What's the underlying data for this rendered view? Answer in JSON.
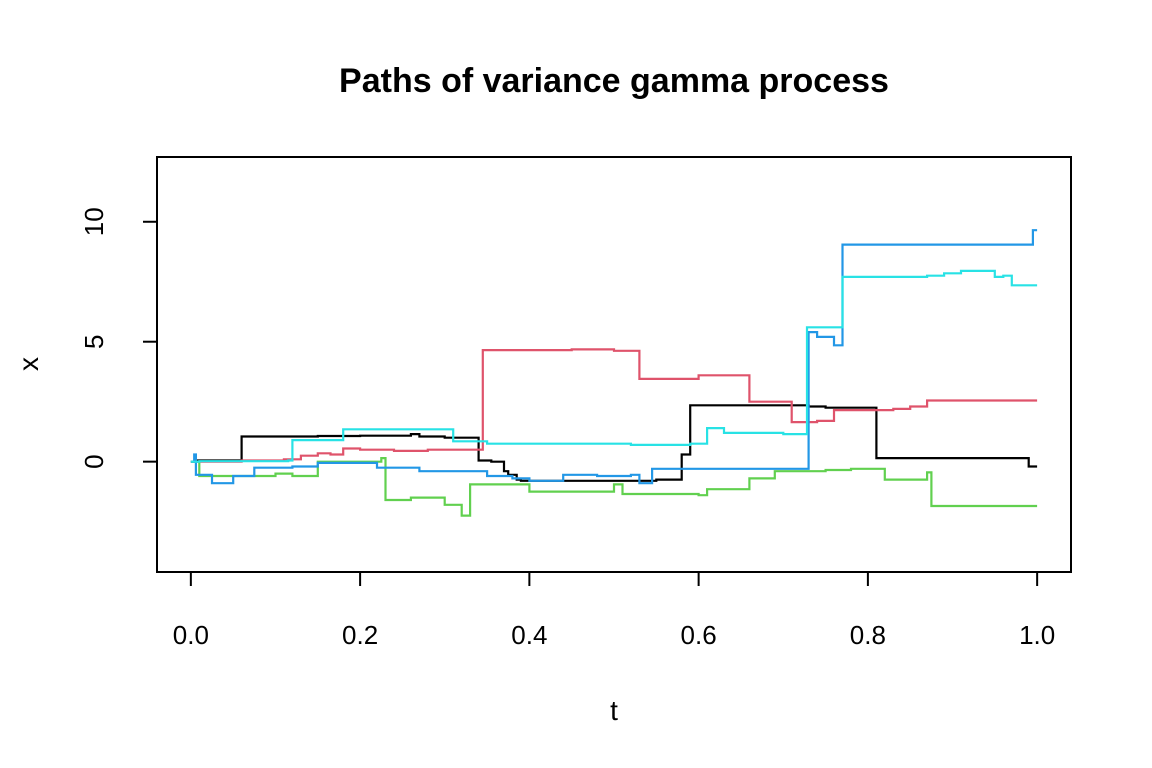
{
  "chart_data": {
    "type": "line",
    "title": "Paths of variance gamma process",
    "xlabel": "t",
    "ylabel": "x",
    "xlim": [
      -0.04,
      1.04
    ],
    "ylim": [
      -4.6,
      12.7
    ],
    "x_ticks": [
      0.0,
      0.2,
      0.4,
      0.6,
      0.8,
      1.0
    ],
    "x_tick_labels": [
      "0.0",
      "0.2",
      "0.4",
      "0.6",
      "0.8",
      "1.0"
    ],
    "y_ticks": [
      0,
      5,
      10
    ],
    "y_tick_labels": [
      "0",
      "5",
      "10"
    ],
    "grid": false,
    "legend": "none",
    "step": true,
    "series": [
      {
        "color": "#000000",
        "x": [
          0,
          0.005,
          0.06,
          0.1,
          0.15,
          0.2,
          0.26,
          0.27,
          0.3,
          0.34,
          0.355,
          0.37,
          0.375,
          0.385,
          0.39,
          0.45,
          0.5,
          0.55,
          0.58,
          0.59,
          0.65,
          0.73,
          0.75,
          0.81,
          0.85,
          0.99,
          1.0
        ],
        "y": [
          0,
          0.05,
          1.05,
          1.05,
          1.07,
          1.08,
          1.15,
          1.05,
          1.0,
          0.05,
          0.0,
          -0.4,
          -0.55,
          -0.75,
          -0.8,
          -0.8,
          -0.8,
          -0.75,
          0.3,
          2.35,
          2.35,
          2.3,
          2.25,
          0.15,
          0.15,
          -0.2,
          -0.2
        ]
      },
      {
        "color": "#DF536B",
        "x": [
          0,
          0.06,
          0.08,
          0.11,
          0.13,
          0.15,
          0.165,
          0.18,
          0.2,
          0.24,
          0.26,
          0.28,
          0.34,
          0.345,
          0.45,
          0.5,
          0.53,
          0.56,
          0.6,
          0.66,
          0.7,
          0.71,
          0.74,
          0.76,
          0.8,
          0.83,
          0.85,
          0.87,
          0.9,
          1.0
        ],
        "y": [
          0,
          0.05,
          0.05,
          0.1,
          0.25,
          0.35,
          0.3,
          0.55,
          0.5,
          0.45,
          0.45,
          0.5,
          0.5,
          4.65,
          4.68,
          4.62,
          3.45,
          3.45,
          3.6,
          2.5,
          2.5,
          1.65,
          1.7,
          2.15,
          2.15,
          2.2,
          2.3,
          2.55,
          2.55,
          2.55
        ]
      },
      {
        "color": "#61D04F",
        "x": [
          0,
          0.01,
          0.05,
          0.1,
          0.12,
          0.15,
          0.2,
          0.225,
          0.23,
          0.26,
          0.3,
          0.32,
          0.33,
          0.34,
          0.4,
          0.5,
          0.51,
          0.56,
          0.6,
          0.61,
          0.66,
          0.69,
          0.75,
          0.78,
          0.82,
          0.86,
          0.87,
          0.875,
          0.95,
          1.0
        ],
        "y": [
          0,
          -0.6,
          -0.6,
          -0.5,
          -0.6,
          0.0,
          0.0,
          0.15,
          -1.6,
          -1.5,
          -1.8,
          -2.25,
          -0.95,
          -0.95,
          -1.25,
          -0.95,
          -1.35,
          -1.35,
          -1.4,
          -1.15,
          -0.7,
          -0.4,
          -0.35,
          -0.3,
          -0.75,
          -0.75,
          -0.45,
          -1.85,
          -1.85,
          -1.85
        ]
      },
      {
        "color": "#2297E6",
        "x": [
          0,
          0.004,
          0.006,
          0.025,
          0.05,
          0.075,
          0.12,
          0.15,
          0.2,
          0.22,
          0.27,
          0.35,
          0.38,
          0.4,
          0.44,
          0.48,
          0.52,
          0.53,
          0.545,
          0.6,
          0.7,
          0.725,
          0.73,
          0.74,
          0.76,
          0.77,
          0.85,
          0.95,
          0.995,
          1.0
        ],
        "y": [
          0,
          0.3,
          -0.55,
          -0.9,
          -0.6,
          -0.25,
          -0.2,
          -0.05,
          -0.05,
          -0.25,
          -0.4,
          -0.6,
          -0.7,
          -0.8,
          -0.55,
          -0.6,
          -0.55,
          -0.9,
          -0.3,
          -0.3,
          -0.3,
          -0.3,
          5.4,
          5.2,
          4.85,
          9.05,
          9.05,
          9.05,
          9.65,
          9.65
        ]
      },
      {
        "color": "#28E2E5",
        "x": [
          0,
          0.01,
          0.06,
          0.115,
          0.12,
          0.18,
          0.21,
          0.25,
          0.305,
          0.31,
          0.35,
          0.4,
          0.45,
          0.5,
          0.52,
          0.55,
          0.58,
          0.59,
          0.6,
          0.61,
          0.63,
          0.7,
          0.725,
          0.728,
          0.765,
          0.77,
          0.85,
          0.87,
          0.89,
          0.91,
          0.93,
          0.95,
          0.96,
          0.97,
          1.0
        ],
        "y": [
          0,
          0.02,
          0.02,
          0.05,
          0.9,
          1.35,
          1.35,
          1.35,
          1.35,
          0.85,
          0.75,
          0.75,
          0.75,
          0.75,
          0.7,
          0.7,
          0.7,
          0.75,
          0.75,
          1.4,
          1.2,
          1.15,
          1.15,
          5.6,
          5.6,
          7.7,
          7.7,
          7.75,
          7.85,
          7.95,
          7.95,
          7.7,
          7.75,
          7.35,
          7.35
        ]
      }
    ]
  }
}
